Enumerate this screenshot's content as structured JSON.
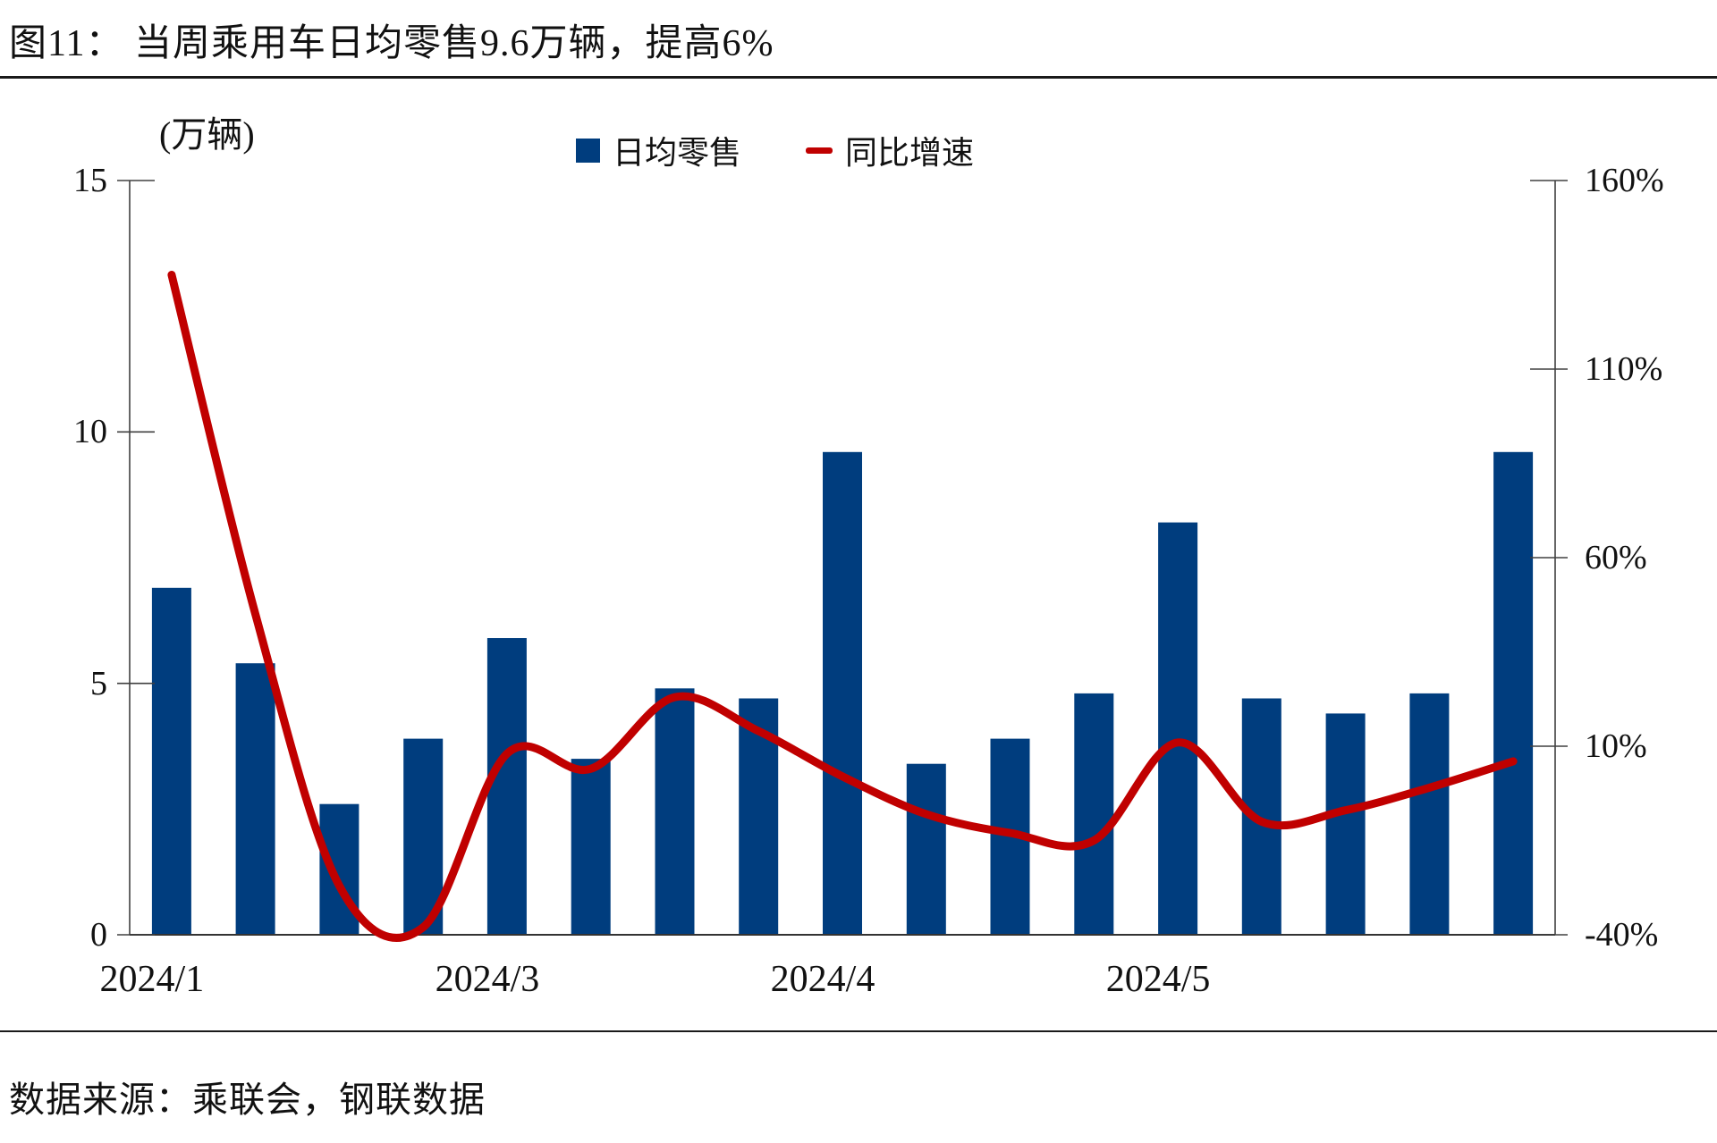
{
  "chart_data": {
    "type": "bar",
    "combo": "bar+line-dual-axis",
    "title": "图11： 当周乘用车日均零售9.6万辆，提高6%",
    "ylabel_left_unit": "(万辆)",
    "left_axis": {
      "ticks": [
        15,
        10,
        5,
        0
      ],
      "range": [
        0,
        15
      ]
    },
    "right_axis": {
      "ticks": [
        "160%",
        "110%",
        "60%",
        "10%",
        "-40%"
      ],
      "range_percent": [
        -40,
        160
      ]
    },
    "x_tick_labels": [
      {
        "label": "2024/1",
        "at_bar_index": 0
      },
      {
        "label": "2024/3",
        "at_bar_index": 4
      },
      {
        "label": "2024/4",
        "at_bar_index": 8
      },
      {
        "label": "2024/5",
        "at_bar_index": 12
      }
    ],
    "series": [
      {
        "name": "日均零售",
        "type": "bar",
        "axis": "left",
        "color": "#003D7E",
        "values": [
          6.9,
          5.4,
          2.6,
          3.9,
          5.9,
          3.5,
          4.9,
          4.7,
          9.6,
          3.4,
          3.9,
          4.8,
          8.2,
          4.7,
          4.4,
          4.8,
          9.6
        ]
      },
      {
        "name": "同比增速",
        "type": "line",
        "axis": "right",
        "unit": "%",
        "color": "#C00000",
        "values": [
          135,
          45,
          -27,
          -38,
          8,
          4,
          23,
          14,
          2,
          -8,
          -13,
          -15,
          11,
          -10,
          -7,
          -1,
          6
        ]
      }
    ],
    "legend_position": "top",
    "grid": false,
    "axis_color": "#404040"
  },
  "footer": {
    "source": "数据来源：乘联会，钢联数据"
  }
}
